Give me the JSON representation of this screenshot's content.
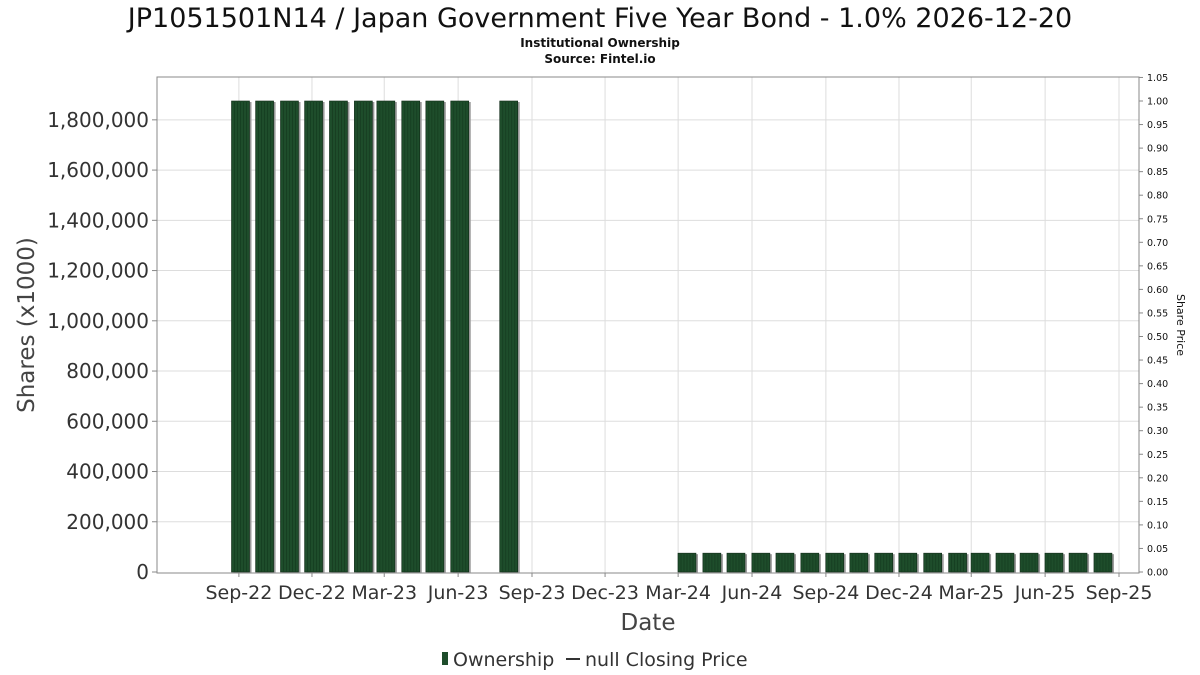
{
  "chart_data": {
    "type": "bar",
    "title": "JP1051501N14 / Japan Government Five Year Bond - 1.0% 2026-12-20",
    "subtitle_lines": [
      "Institutional Ownership",
      "Source: Fintel.io"
    ],
    "xlabel": "Date",
    "ylabel": "Shares (x1000)",
    "y2label": "Share Price",
    "ylim": [
      0,
      1950000
    ],
    "y_ticks": [
      "0",
      "200,000",
      "400,000",
      "600,000",
      "800,000",
      "1,000,000",
      "1,200,000",
      "1,400,000",
      "1,600,000",
      "1,800,000"
    ],
    "y2lim": [
      0,
      1.05
    ],
    "y2_ticks": [
      "0.00",
      "0.05",
      "0.10",
      "0.15",
      "0.20",
      "0.25",
      "0.30",
      "0.35",
      "0.40",
      "0.45",
      "0.50",
      "0.55",
      "0.60",
      "0.65",
      "0.70",
      "0.75",
      "0.80",
      "0.85",
      "0.90",
      "0.95",
      "1.00",
      "1.05"
    ],
    "x_ticks": [
      "Sep-22",
      "Dec-22",
      "Mar-23",
      "Jun-23",
      "Sep-23",
      "Dec-23",
      "Mar-24",
      "Jun-24",
      "Sep-24",
      "Dec-24",
      "Mar-25",
      "Jun-25",
      "Sep-25"
    ],
    "grid": true,
    "legend_position": "bottom",
    "series": [
      {
        "name": "Ownership",
        "color": "#1e4d2b",
        "points": [
          {
            "date": "2022-09-03",
            "value": 1875000
          },
          {
            "date": "2022-10-03",
            "value": 1875000
          },
          {
            "date": "2022-11-03",
            "value": 1875000
          },
          {
            "date": "2022-12-03",
            "value": 1875000
          },
          {
            "date": "2023-01-03",
            "value": 1875000
          },
          {
            "date": "2023-02-03",
            "value": 1875000
          },
          {
            "date": "2023-03-03",
            "value": 1875000
          },
          {
            "date": "2023-04-03",
            "value": 1875000
          },
          {
            "date": "2023-05-03",
            "value": 1875000
          },
          {
            "date": "2023-06-03",
            "value": 1875000
          },
          {
            "date": "2023-08-03",
            "value": 1875000
          },
          {
            "date": "2024-03-12",
            "value": 75000
          },
          {
            "date": "2024-04-12",
            "value": 75000
          },
          {
            "date": "2024-05-12",
            "value": 75000
          },
          {
            "date": "2024-06-12",
            "value": 75000
          },
          {
            "date": "2024-07-12",
            "value": 75000
          },
          {
            "date": "2024-08-12",
            "value": 75000
          },
          {
            "date": "2024-09-12",
            "value": 75000
          },
          {
            "date": "2024-10-12",
            "value": 75000
          },
          {
            "date": "2024-11-12",
            "value": 75000
          },
          {
            "date": "2024-12-12",
            "value": 75000
          },
          {
            "date": "2025-01-12",
            "value": 75000
          },
          {
            "date": "2025-02-12",
            "value": 75000
          },
          {
            "date": "2025-03-12",
            "value": 75000
          },
          {
            "date": "2025-04-12",
            "value": 75000
          },
          {
            "date": "2025-05-12",
            "value": 75000
          },
          {
            "date": "2025-06-12",
            "value": 75000
          },
          {
            "date": "2025-07-12",
            "value": 75000
          },
          {
            "date": "2025-08-12",
            "value": 75000
          }
        ]
      },
      {
        "name": "null Closing Price",
        "color": "#333333",
        "values": []
      }
    ]
  }
}
